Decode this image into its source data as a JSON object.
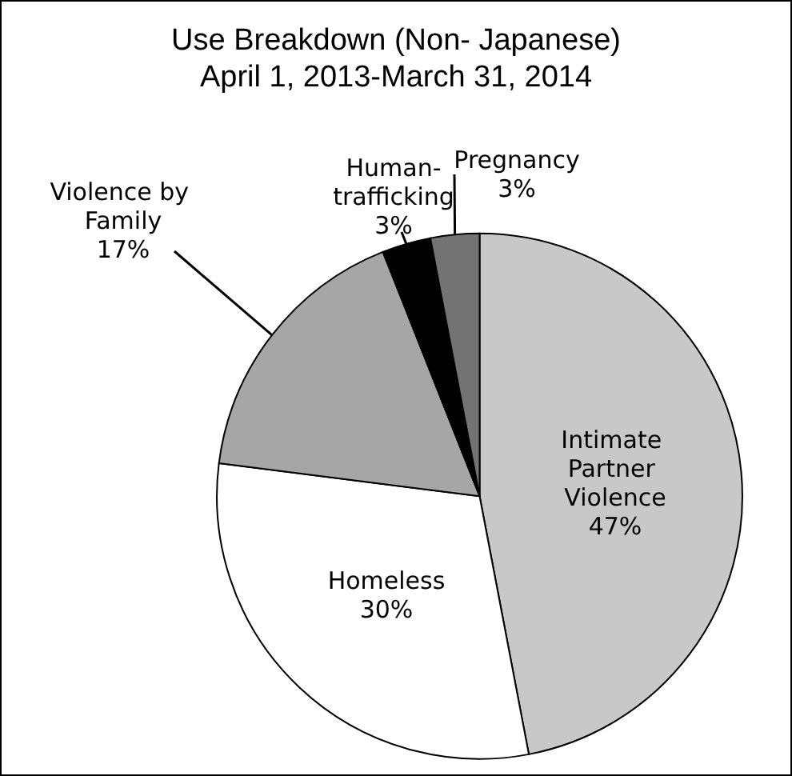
{
  "chart_data": {
    "type": "pie",
    "title": "Use Breakdown (Non- Japanese)",
    "subtitle": "April 1, 2013-March 31, 2014",
    "categories": [
      "Intimate Partner Violence",
      "Homeless",
      "Violence by Family",
      "Human-trafficking",
      "Pregnancy"
    ],
    "values": [
      47,
      30,
      17,
      3,
      3
    ],
    "colors": [
      "#c8c8c8",
      "#ffffff",
      "#a6a6a6",
      "#000000",
      "#737373"
    ],
    "value_labels": [
      "47%",
      "30%",
      "17%",
      "3%",
      "3%"
    ]
  }
}
